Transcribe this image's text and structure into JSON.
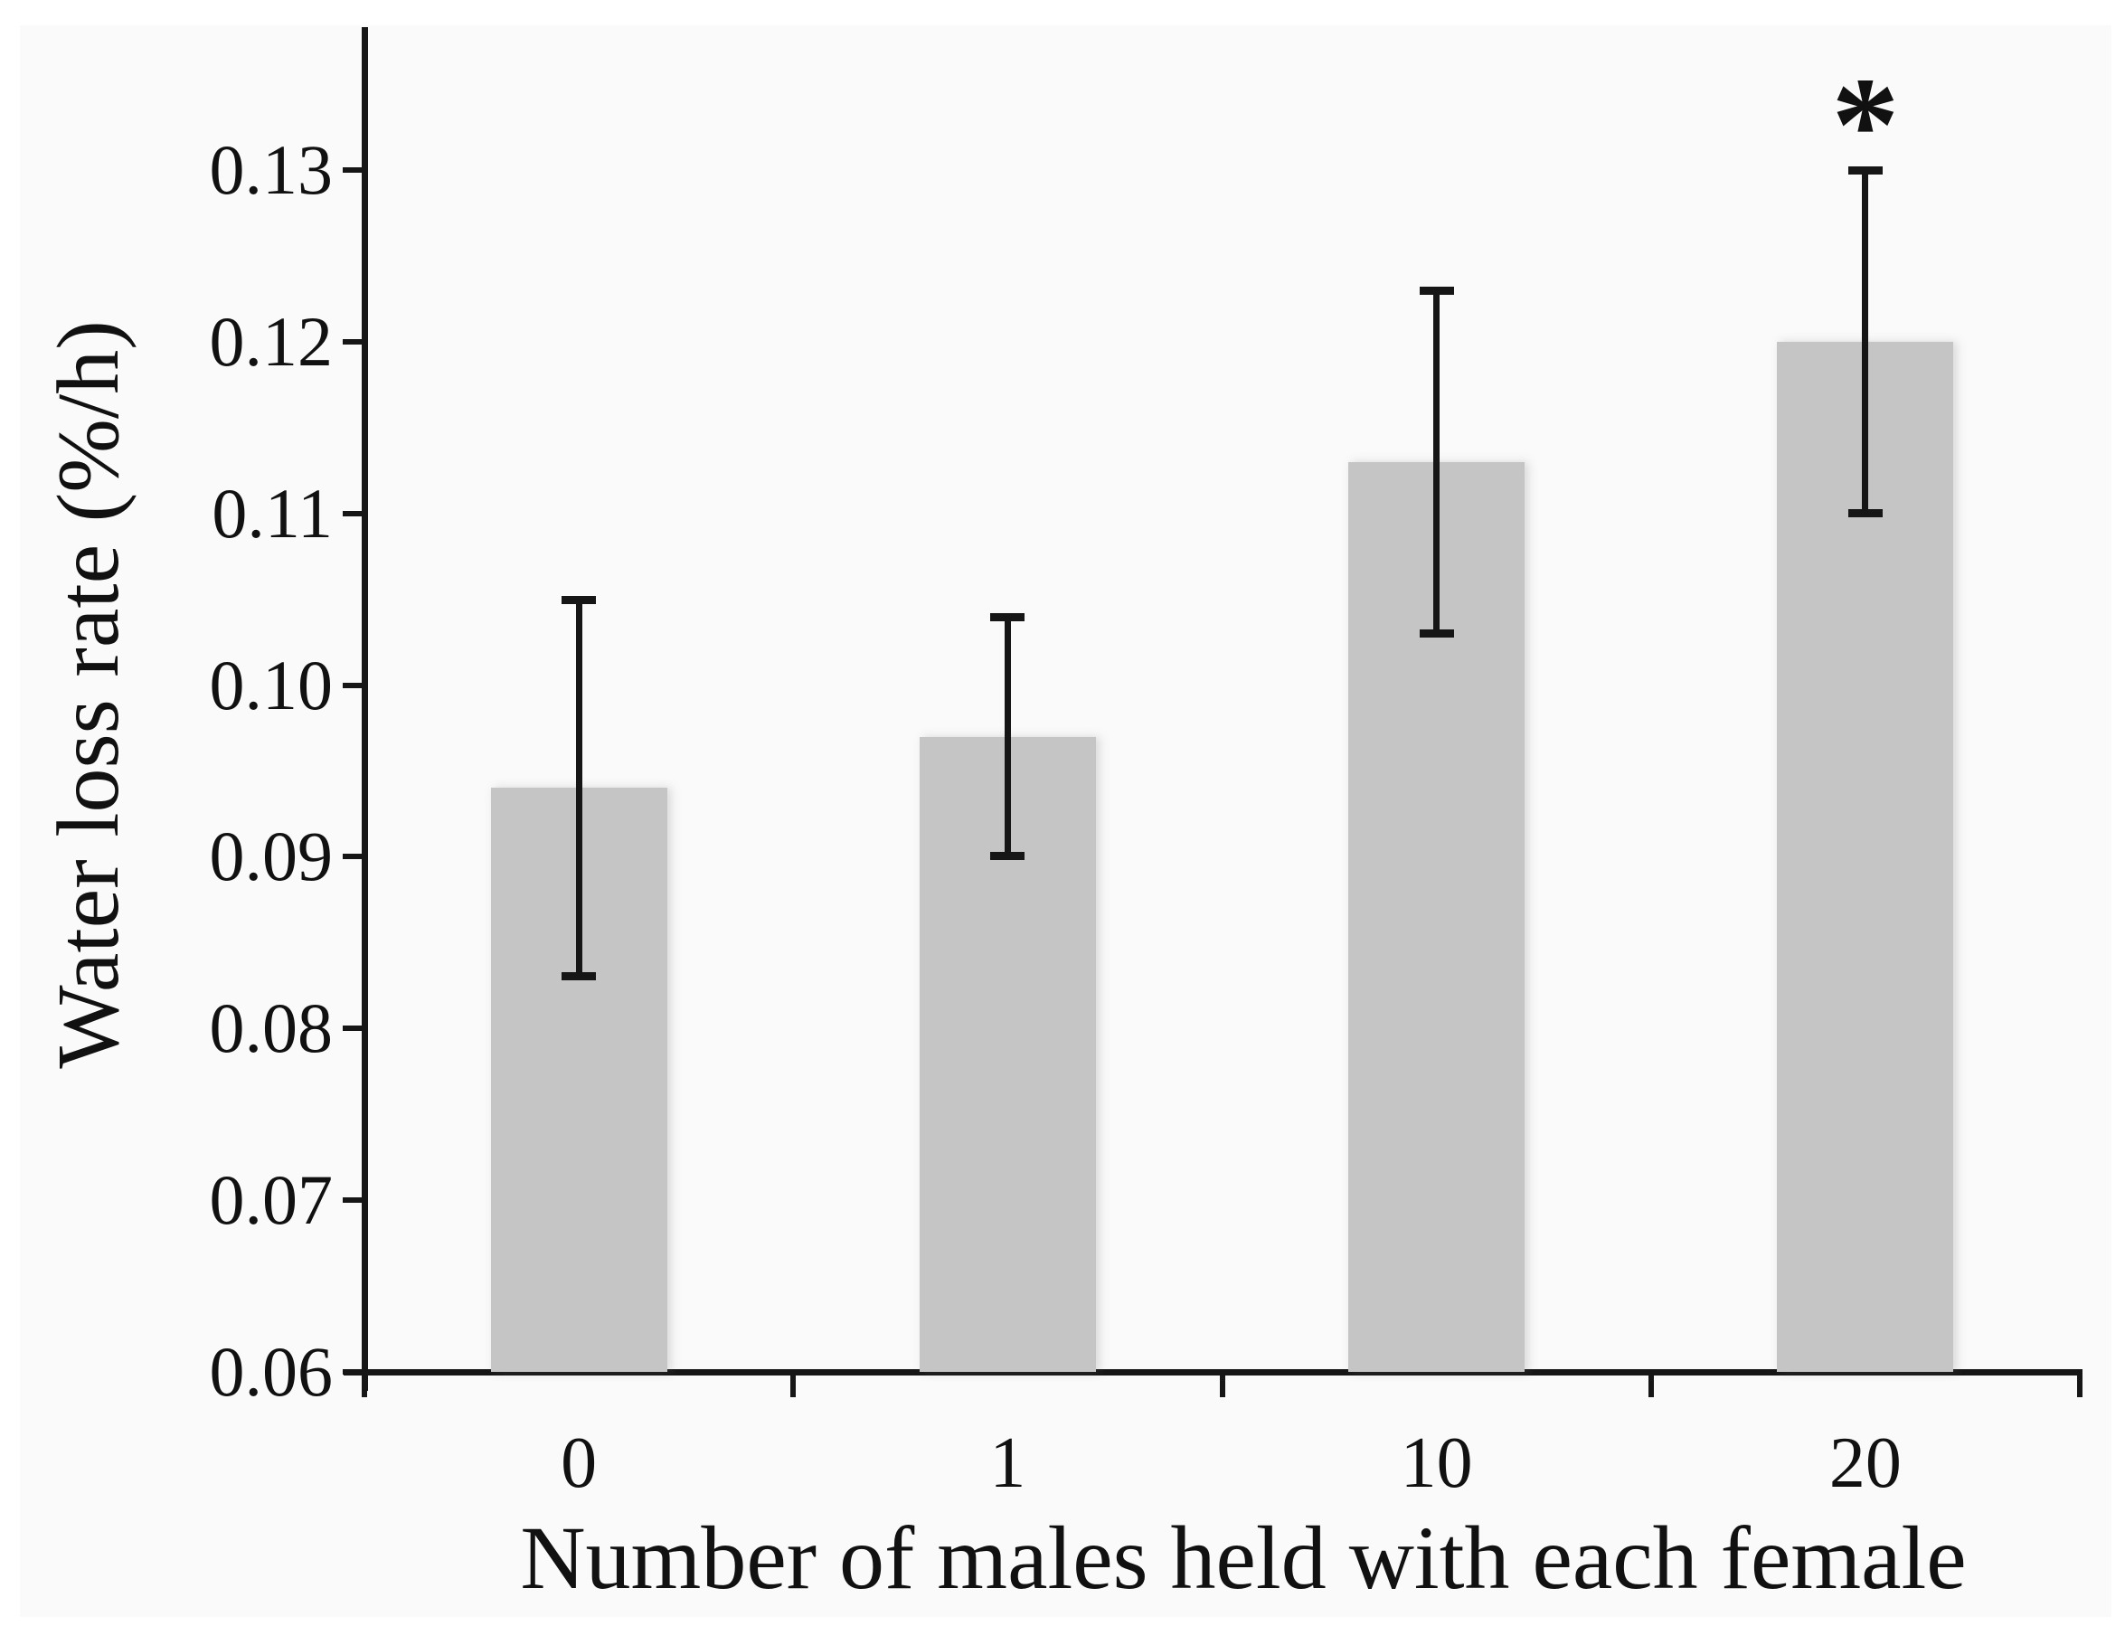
{
  "figure": {
    "page_background": "#ffffff",
    "panel_background": "#fafafa",
    "bar_color": "#c5c5c5",
    "axis_color": "#161616",
    "text_color": "#111111"
  },
  "chart_data": {
    "type": "bar",
    "title": "",
    "xlabel": "Number of males held with each female",
    "ylabel": "Water loss rate (%/h)",
    "categories": [
      "0",
      "1",
      "10",
      "20"
    ],
    "values": [
      0.094,
      0.097,
      0.113,
      0.12
    ],
    "error_low": [
      0.083,
      0.09,
      0.103,
      0.11
    ],
    "error_high": [
      0.105,
      0.104,
      0.123,
      0.13
    ],
    "significance_markers": [
      "",
      "",
      "",
      "*"
    ],
    "ylim": [
      0.06,
      0.135
    ],
    "ytick_labels": [
      "0.06",
      "0.07",
      "0.08",
      "0.09",
      "0.10",
      "0.11",
      "0.12",
      "0.13"
    ],
    "ytick_values": [
      0.06,
      0.07,
      0.08,
      0.09,
      0.1,
      0.11,
      0.12,
      0.13
    ],
    "grid": false,
    "legend": null,
    "bar_orientation": "vertical",
    "error_bars": "symmetric caps, above and below bar top"
  }
}
